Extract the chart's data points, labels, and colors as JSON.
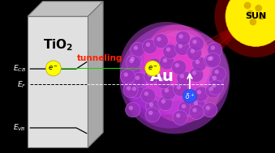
{
  "bg_color": "#000000",
  "tio2_face_color": "#e0e0e0",
  "tio2_top_color": "#c0c0c0",
  "tio2_side_color": "#a8a8a8",
  "tio2_label": "TiO$_2$",
  "arrow_color": "#22cc00",
  "tunneling_color": "#ff2200",
  "electron_circle": "#ffff00",
  "hole_circle": "#3355ff",
  "fig_width": 3.39,
  "fig_height": 1.89,
  "dpi": 100,
  "xlim": [
    0,
    10
  ],
  "ylim": [
    0,
    5.6
  ]
}
